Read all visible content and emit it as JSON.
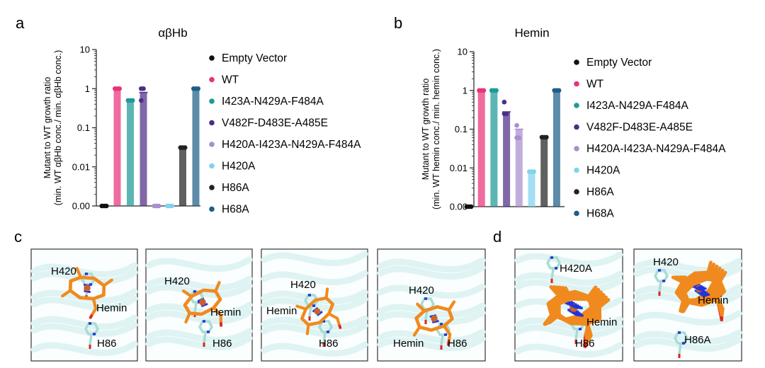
{
  "panels": {
    "a": "a",
    "b": "b",
    "c": "c",
    "d": "d"
  },
  "chart_data": [
    {
      "type": "bar",
      "title": "αβHb",
      "ylabel_lines": [
        "Mutant to WT growth ratio",
        "(min. WT αβHb conc./ min. αβHb conc.)"
      ],
      "yscale": "log",
      "ylim": [
        0.001,
        10
      ],
      "yticks": [
        {
          "value": 10,
          "label": "10"
        },
        {
          "value": 1,
          "label": "1"
        },
        {
          "value": 0.1,
          "label": "0.1"
        },
        {
          "value": 0.01,
          "label": "0.01"
        },
        {
          "value": 0.001,
          "label": "0.00"
        }
      ],
      "categories": [
        "Empty Vector",
        "WT",
        "I423A-N429A-F484A",
        "V482F-D483E-A485E",
        "H420A-I423A-N429A-F484A",
        "H420A",
        "H86A",
        "H68A"
      ],
      "values": [
        0.001,
        1,
        0.5,
        0.8,
        0.001,
        0.001,
        0.031,
        1
      ],
      "points": [
        [
          0.001,
          0.001,
          0.001
        ],
        [
          1,
          1,
          1
        ],
        [
          0.5,
          0.5,
          0.5
        ],
        [
          1,
          1,
          0.5
        ],
        [
          0.001,
          0.001,
          0.001
        ],
        [
          0.001,
          0.001,
          0.001
        ],
        [
          0.031,
          0.031,
          0.031
        ],
        [
          1,
          1,
          1
        ]
      ],
      "legend": [
        "Empty Vector",
        "WT",
        "I423A-N429A-F484A",
        "V482F-D483E-A485E",
        "H420A-I423A-N429A-F484A",
        "H420A",
        "H86A",
        "H68A"
      ],
      "legend_position": "right",
      "grid": false
    },
    {
      "type": "bar",
      "title": "Hemin",
      "ylabel_lines": [
        "Mutant to WT growth ratio",
        "(min. WT hemin conc./ min. hemin conc.)"
      ],
      "yscale": "log",
      "ylim": [
        0.001,
        10
      ],
      "yticks": [
        {
          "value": 10,
          "label": "10"
        },
        {
          "value": 1,
          "label": "1"
        },
        {
          "value": 0.1,
          "label": "0.1"
        },
        {
          "value": 0.01,
          "label": "0.01"
        },
        {
          "value": 0.001,
          "label": "0.00"
        }
      ],
      "categories": [
        "Empty Vector",
        "WT",
        "I423A-N429A-F484A",
        "V482F-D483E-A485E",
        "H420A-I423A-N429A-F484A",
        "H420A",
        "H86A",
        "H68A"
      ],
      "values": [
        0.001,
        1,
        1,
        0.28,
        0.1,
        0.008,
        0.062,
        1
      ],
      "points": [
        [
          0.001,
          0.001,
          0.001
        ],
        [
          1,
          1,
          1
        ],
        [
          1,
          1,
          1
        ],
        [
          0.5,
          0.25,
          0.25
        ],
        [
          0.125,
          0.06,
          0.06
        ],
        [
          0.008,
          0.008,
          0.008
        ],
        [
          0.062,
          0.062,
          0.062
        ],
        [
          1,
          1,
          1
        ]
      ],
      "legend": [
        "Empty Vector",
        "WT",
        "I423A-N429A-F484A",
        "V482F-D483E-A485E",
        "H420A-I423A-N429A-F484A",
        "H420A",
        "H86A",
        "H68A"
      ],
      "legend_position": "right",
      "grid": false
    }
  ],
  "colors": {
    "Empty Vector": "#111111",
    "WT": "#e8337a",
    "I423A-N429A-F484A": "#1f9a95",
    "V482F-D483E-A485E": "#4d2d86",
    "H420A-I423A-N429A-F484A": "#a98ecf",
    "H420A": "#7fd3ef",
    "H86A": "#222222",
    "H68A": "#1d5f86",
    "hemin": "#f08a1e",
    "histidine": "#a8dcd4",
    "nitrogen": "#2233dd",
    "oxygen": "#e02020",
    "protein": "#dff3f3"
  },
  "structures_c": [
    {
      "labels": [
        "H420",
        "Hemin",
        "H86"
      ]
    },
    {
      "labels": [
        "H420",
        "Hemin",
        "H86"
      ]
    },
    {
      "labels": [
        "H420",
        "Hemin",
        "H86"
      ]
    },
    {
      "labels": [
        "H420",
        "Hemin",
        "H86"
      ]
    }
  ],
  "structures_d": [
    {
      "labels": [
        "H420A",
        "Hemin",
        "H86"
      ]
    },
    {
      "labels": [
        "H420",
        "Hemin",
        "H86A"
      ]
    }
  ]
}
